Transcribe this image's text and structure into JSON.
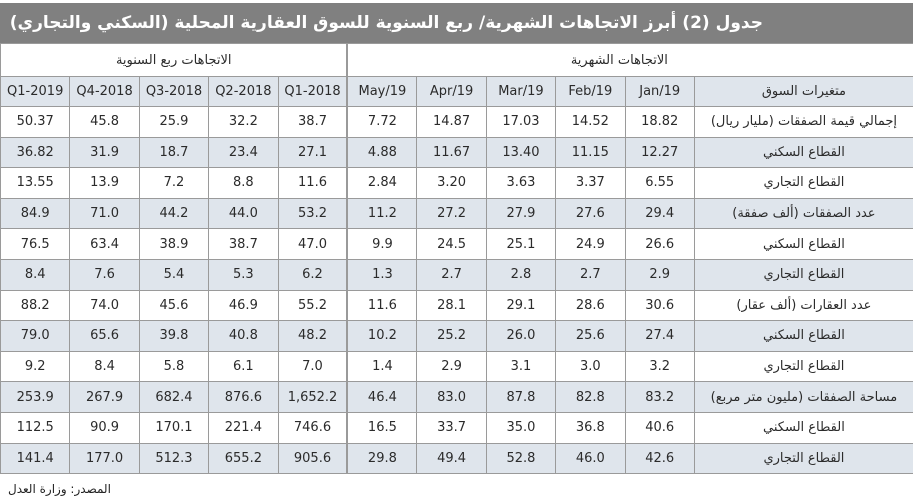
{
  "title": "جدول (2) أبرز الاتجاهات الشهرية/ ربع السنوية للسوق العقارية المحلية (السكني والتجاري)",
  "groups": {
    "monthly": "الاتجاهات الشهرية",
    "quarterly": "الاتجاهات ربع السنوية"
  },
  "columns": {
    "label": "متغيرات السوق",
    "monthly": [
      "Jan/19",
      "Feb/19",
      "Mar/19",
      "Apr/19",
      "May/19"
    ],
    "quarterly": [
      "2018-Q1",
      "2018-Q2",
      "2018-Q3",
      "2018-Q4",
      "2019-Q1"
    ]
  },
  "rows": [
    {
      "label": "إجمالي قيمة الصفقات (مليار ريال)",
      "monthly": [
        "18.82",
        "14.52",
        "17.03",
        "14.87",
        "7.72"
      ],
      "quarterly": [
        "38.7",
        "32.2",
        "25.9",
        "45.8",
        "50.37"
      ]
    },
    {
      "label": "القطاع السكني",
      "monthly": [
        "12.27",
        "11.15",
        "13.40",
        "11.67",
        "4.88"
      ],
      "quarterly": [
        "27.1",
        "23.4",
        "18.7",
        "31.9",
        "36.82"
      ]
    },
    {
      "label": "القطاع التجاري",
      "monthly": [
        "6.55",
        "3.37",
        "3.63",
        "3.20",
        "2.84"
      ],
      "quarterly": [
        "11.6",
        "8.8",
        "7.2",
        "13.9",
        "13.55"
      ]
    },
    {
      "label": "عدد الصفقات (ألف صفقة)",
      "monthly": [
        "29.4",
        "27.6",
        "27.9",
        "27.2",
        "11.2"
      ],
      "quarterly": [
        "53.2",
        "44.0",
        "44.2",
        "71.0",
        "84.9"
      ]
    },
    {
      "label": "القطاع السكني",
      "monthly": [
        "26.6",
        "24.9",
        "25.1",
        "24.5",
        "9.9"
      ],
      "quarterly": [
        "47.0",
        "38.7",
        "38.9",
        "63.4",
        "76.5"
      ]
    },
    {
      "label": "القطاع التجاري",
      "monthly": [
        "2.9",
        "2.7",
        "2.8",
        "2.7",
        "1.3"
      ],
      "quarterly": [
        "6.2",
        "5.3",
        "5.4",
        "7.6",
        "8.4"
      ]
    },
    {
      "label": "عدد العقارات (ألف عقار)",
      "monthly": [
        "30.6",
        "28.6",
        "29.1",
        "28.1",
        "11.6"
      ],
      "quarterly": [
        "55.2",
        "46.9",
        "45.6",
        "74.0",
        "88.2"
      ]
    },
    {
      "label": "القطاع السكني",
      "monthly": [
        "27.4",
        "25.6",
        "26.0",
        "25.2",
        "10.2"
      ],
      "quarterly": [
        "48.2",
        "40.8",
        "39.8",
        "65.6",
        "79.0"
      ]
    },
    {
      "label": "القطاع التجاري",
      "monthly": [
        "3.2",
        "3.0",
        "3.1",
        "2.9",
        "1.4"
      ],
      "quarterly": [
        "7.0",
        "6.1",
        "5.8",
        "8.4",
        "9.2"
      ]
    },
    {
      "label": "مساحة الصفقات (مليون متر مربع)",
      "monthly": [
        "83.2",
        "82.8",
        "87.8",
        "83.0",
        "46.4"
      ],
      "quarterly": [
        "1,652.2",
        "876.6",
        "682.4",
        "267.9",
        "253.9"
      ]
    },
    {
      "label": "القطاع السكني",
      "monthly": [
        "40.6",
        "36.8",
        "35.0",
        "33.7",
        "16.5"
      ],
      "quarterly": [
        "746.6",
        "221.4",
        "170.1",
        "90.9",
        "112.5"
      ]
    },
    {
      "label": "القطاع التجاري",
      "monthly": [
        "42.6",
        "46.0",
        "52.8",
        "49.4",
        "29.8"
      ],
      "quarterly": [
        "905.6",
        "655.2",
        "512.3",
        "177.0",
        "141.4"
      ]
    }
  ],
  "source": "المصدر: وزارة العدل",
  "colors": {
    "title_bg": "#808080",
    "header_bg": "#dfe5ec",
    "stripe_bg": "#dfe5ec",
    "grid": "#9a9a9a"
  }
}
